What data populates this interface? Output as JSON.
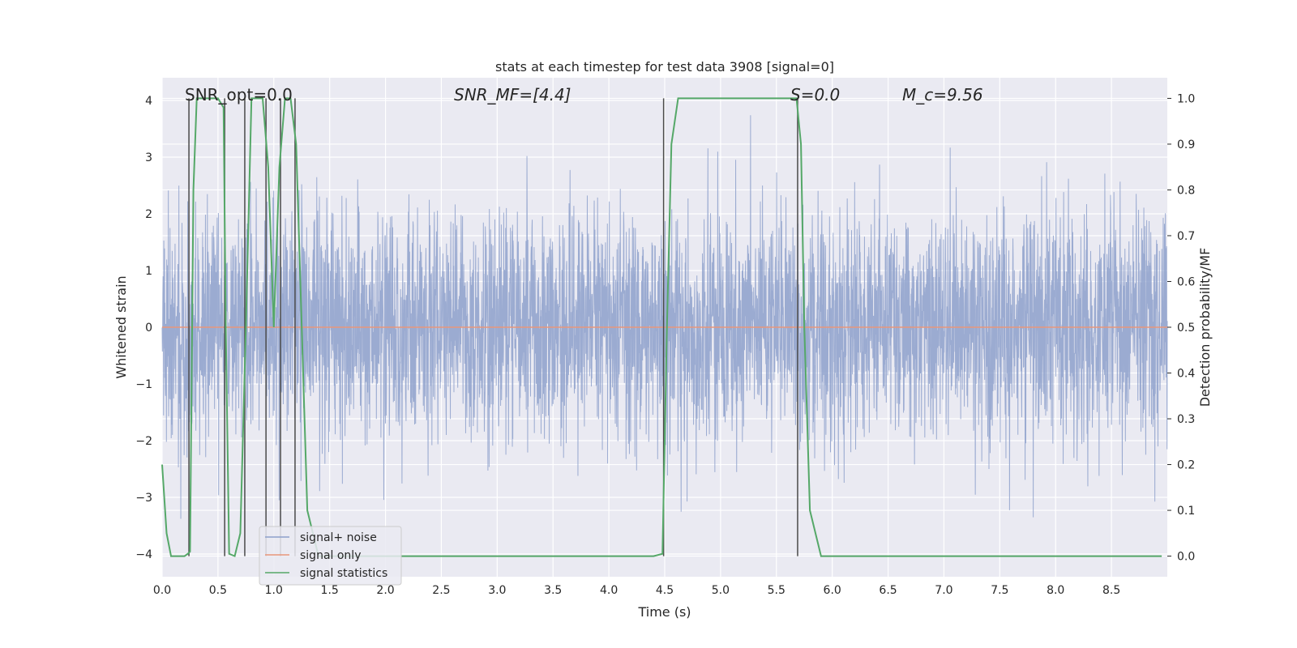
{
  "chart_data": {
    "type": "line",
    "title": "stats at each timestep for test data 3908 [signal=0]",
    "xlabel": "Time (s)",
    "ylabel": "Whitened strain",
    "ylabel_right": "Detection probability/MF",
    "xlim": [
      0.0,
      9.0
    ],
    "ylim": [
      -4.4,
      4.4
    ],
    "ylim_right": [
      -0.045,
      1.045
    ],
    "x_ticks": [
      "0.0",
      "0.5",
      "1.0",
      "1.5",
      "2.0",
      "2.5",
      "3.0",
      "3.5",
      "4.0",
      "4.5",
      "5.0",
      "5.5",
      "6.0",
      "6.5",
      "7.0",
      "7.5",
      "8.0",
      "8.5"
    ],
    "y_ticks": [
      "4",
      "3",
      "2",
      "1",
      "0",
      "−1",
      "−2",
      "−3",
      "−4"
    ],
    "y_ticks_right": [
      "1.0",
      "0.9",
      "0.8",
      "0.7",
      "0.6",
      "0.5",
      "0.4",
      "0.3",
      "0.2",
      "0.1",
      "0.0"
    ],
    "grid": true,
    "legend_position": "lower-left",
    "annotations": [
      {
        "text": "SNR_opt=0.0",
        "x": 0.2
      },
      {
        "text": "SNR_MF=[4.4]",
        "x": 2.6
      },
      {
        "text": "S=0.0",
        "x": 5.6
      },
      {
        "text": "M_c=9.56",
        "x": 6.6
      }
    ],
    "series": [
      {
        "name": "signal+ noise",
        "axis": "left",
        "color": "#8da0cb",
        "description": "whitened noise, approx. gaussian, std ~1, range about -3.8 to 4.0",
        "x_range": [
          0.0,
          9.0
        ],
        "amplitude_range": [
          -3.8,
          4.0
        ]
      },
      {
        "name": "signal only",
        "axis": "left",
        "color": "#e8967a",
        "x": [
          0.0,
          9.0
        ],
        "y": [
          0.0,
          0.0
        ]
      },
      {
        "name": "signal statistics",
        "axis": "right",
        "color": "#55a868",
        "x": [
          0.0,
          0.04,
          0.08,
          0.12,
          0.16,
          0.2,
          0.23,
          0.25,
          0.28,
          0.31,
          0.35,
          0.4,
          0.45,
          0.5,
          0.55,
          0.57,
          0.6,
          0.65,
          0.7,
          0.75,
          0.8,
          0.85,
          0.88,
          0.9,
          0.95,
          1.0,
          1.05,
          1.1,
          1.15,
          1.2,
          1.25,
          1.3,
          1.4,
          1.6,
          2.0,
          2.5,
          3.0,
          3.5,
          4.0,
          4.4,
          4.48,
          4.52,
          4.56,
          4.62,
          5.0,
          5.5,
          5.68,
          5.72,
          5.75,
          5.8,
          5.9,
          6.0,
          7.0,
          8.0,
          8.95
        ],
        "y": [
          0.2,
          0.05,
          0.0,
          0.0,
          0.0,
          0.0,
          0.005,
          0.01,
          0.8,
          1.0,
          1.0,
          1.0,
          1.0,
          1.0,
          0.98,
          0.5,
          0.005,
          0.0,
          0.05,
          0.5,
          1.0,
          1.0,
          1.0,
          1.0,
          0.85,
          0.5,
          0.85,
          1.0,
          1.0,
          0.9,
          0.5,
          0.1,
          0.0,
          0.0,
          0.0,
          0.0,
          0.0,
          0.0,
          0.0,
          0.0,
          0.005,
          0.5,
          0.9,
          1.0,
          1.0,
          1.0,
          1.0,
          0.9,
          0.5,
          0.1,
          0.0,
          0.0,
          0.0,
          0.0,
          0.0
        ]
      }
    ],
    "vlines": {
      "color": "#4a4a4a",
      "x": [
        0.24,
        0.56,
        0.74,
        0.93,
        1.06,
        1.19,
        4.49,
        5.69
      ],
      "ymin_right": [
        0.0,
        0.0,
        0.0,
        0.0,
        0.0,
        0.0,
        0.0,
        0.0
      ],
      "ymax_right": [
        1.0,
        1.0,
        1.0,
        1.0,
        1.0,
        1.0,
        1.0,
        1.0
      ]
    }
  }
}
